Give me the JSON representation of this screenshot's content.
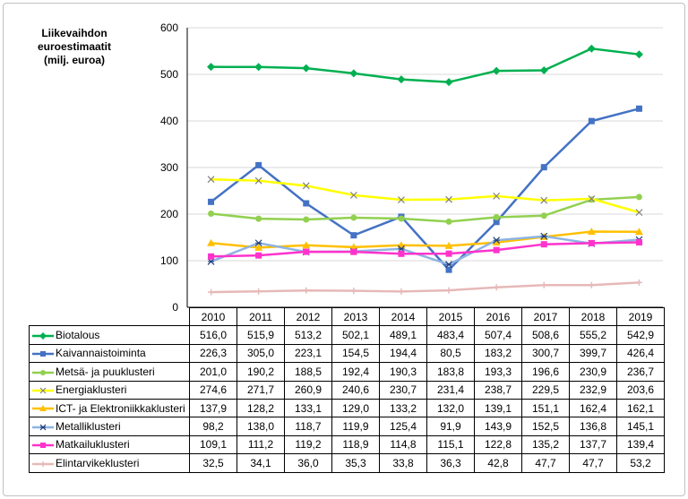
{
  "chart_data": {
    "type": "line",
    "title": "Liikevaihdon euroestimaatit (milj. euroa)",
    "xlabel": "",
    "ylabel": "",
    "ylim": [
      0,
      600
    ],
    "yticks": [
      "0",
      "100",
      "200",
      "300",
      "400",
      "500",
      "600"
    ],
    "grid": true,
    "legend": "data-table",
    "categories": [
      "2010",
      "2011",
      "2012",
      "2013",
      "2014",
      "2015",
      "2016",
      "2017",
      "2018",
      "2019"
    ],
    "series": [
      {
        "name": "Biotalous",
        "color": "#00b050",
        "marker": "diamond",
        "values": [
          516.0,
          515.9,
          513.2,
          502.1,
          489.1,
          483.4,
          507.4,
          508.6,
          555.2,
          542.9
        ],
        "labels": [
          "516,0",
          "515,9",
          "513,2",
          "502,1",
          "489,1",
          "483,4",
          "507,4",
          "508,6",
          "555,2",
          "542,9"
        ]
      },
      {
        "name": "Kaivannaistoiminta",
        "color": "#4472c4",
        "marker": "square",
        "values": [
          226.3,
          305.0,
          223.1,
          154.5,
          194.4,
          80.5,
          183.2,
          300.7,
          399.7,
          426.4
        ],
        "labels": [
          "226,3",
          "305,0",
          "223,1",
          "154,5",
          "194,4",
          "80,5",
          "183,2",
          "300,7",
          "399,7",
          "426,4"
        ]
      },
      {
        "name": "Metsä- ja puuklusteri",
        "color": "#92d050",
        "marker": "circle",
        "values": [
          201.0,
          190.2,
          188.5,
          192.4,
          190.3,
          183.8,
          193.3,
          196.6,
          230.9,
          236.7
        ],
        "labels": [
          "201,0",
          "190,2",
          "188,5",
          "192,4",
          "190,3",
          "183,8",
          "193,3",
          "196,6",
          "230,9",
          "236,7"
        ]
      },
      {
        "name": "Energiaklusteri",
        "color": "#ffff00",
        "marker": "x",
        "values": [
          274.6,
          271.7,
          260.9,
          240.6,
          230.7,
          231.4,
          238.7,
          229.5,
          232.9,
          203.6
        ],
        "labels": [
          "274,6",
          "271,7",
          "260,9",
          "240,6",
          "230,7",
          "231,4",
          "238,7",
          "229,5",
          "232,9",
          "203,6"
        ]
      },
      {
        "name": "ICT- ja Elektroniikkaklusteri",
        "color": "#ffc000",
        "marker": "triangle",
        "values": [
          137.9,
          128.2,
          133.1,
          129.0,
          133.2,
          132.0,
          139.1,
          151.1,
          162.4,
          162.1
        ],
        "labels": [
          "137,9",
          "128,2",
          "133,1",
          "129,0",
          "133,2",
          "132,0",
          "139,1",
          "151,1",
          "162,4",
          "162,1"
        ]
      },
      {
        "name": "Metalliklusteri",
        "color": "#8eb4e3",
        "marker": "star",
        "values": [
          98.2,
          138.0,
          118.7,
          119.9,
          125.4,
          91.9,
          143.9,
          152.5,
          136.8,
          145.1
        ],
        "labels": [
          "98,2",
          "138,0",
          "118,7",
          "119,9",
          "125,4",
          "91,9",
          "143,9",
          "152,5",
          "136,8",
          "145,1"
        ]
      },
      {
        "name": "Matkailuklusteri",
        "color": "#ff33cc",
        "marker": "square",
        "values": [
          109.1,
          111.2,
          119.2,
          118.9,
          114.8,
          115.1,
          122.8,
          135.2,
          137.7,
          139.4
        ],
        "labels": [
          "109,1",
          "111,2",
          "119,2",
          "118,9",
          "114,8",
          "115,1",
          "122,8",
          "135,2",
          "137,7",
          "139,4"
        ]
      },
      {
        "name": "Elintarvikeklusteri",
        "color": "#e6b9b8",
        "marker": "plus",
        "values": [
          32.5,
          34.1,
          36.0,
          35.3,
          33.8,
          36.3,
          42.8,
          47.7,
          47.7,
          53.2
        ],
        "labels": [
          "32,5",
          "34,1",
          "36,0",
          "35,3",
          "33,8",
          "36,3",
          "42,8",
          "47,7",
          "47,7",
          "53,2"
        ]
      }
    ]
  }
}
